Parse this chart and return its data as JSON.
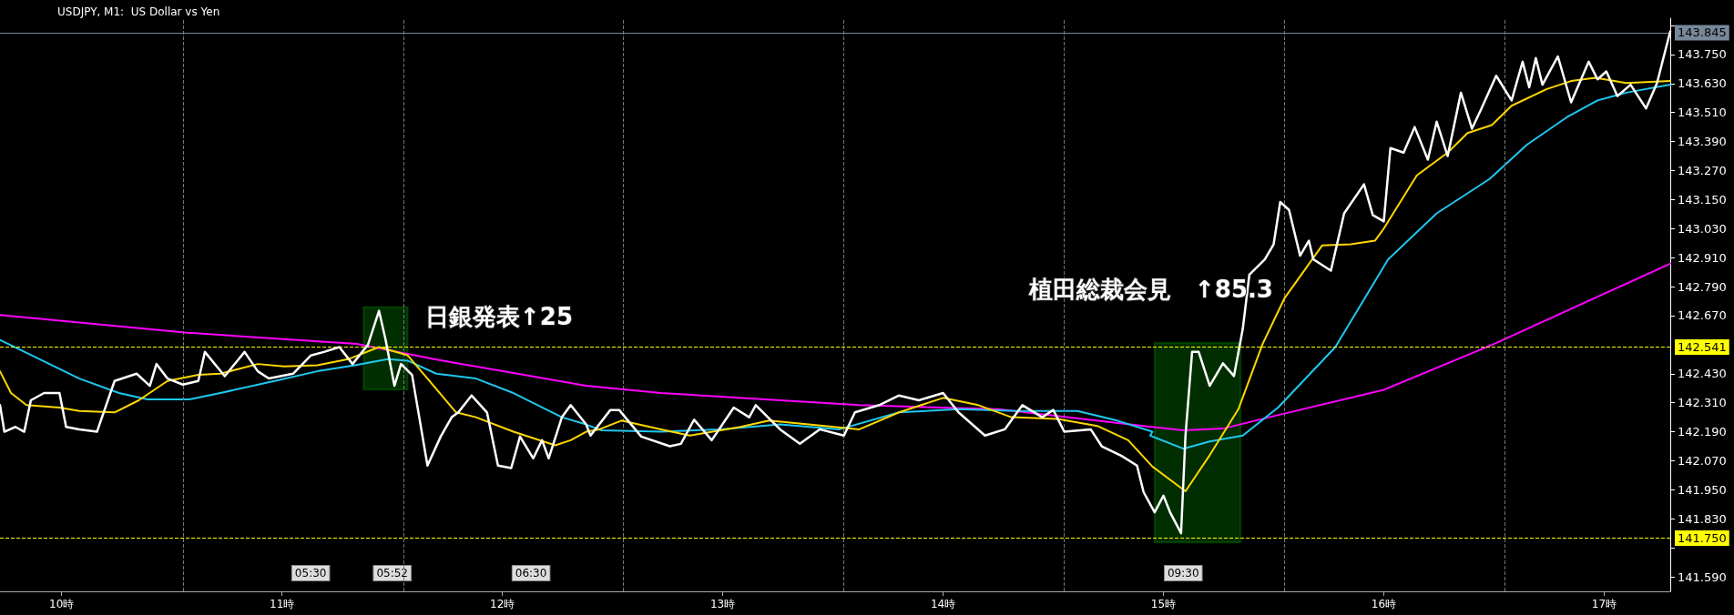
{
  "chart_data": {
    "type": "line",
    "title": "USDJPY, M1:  US Dollar vs Yen",
    "grid": "x",
    "marker": "none",
    "line_style": "solid",
    "xlim": [
      9.72,
      17.3
    ],
    "xticks": [
      {
        "value": 10,
        "label": "10時"
      },
      {
        "value": 10.55,
        "label": null
      },
      {
        "value": 11,
        "label": "11時"
      },
      {
        "value": 11.55,
        "label": null
      },
      {
        "value": 12,
        "label": "12時"
      },
      {
        "value": 12.55,
        "label": null
      },
      {
        "value": 13,
        "label": "13時"
      },
      {
        "value": 13.55,
        "label": null
      },
      {
        "value": 14,
        "label": "14時"
      },
      {
        "value": 14.55,
        "label": null
      },
      {
        "value": 15,
        "label": "15時"
      },
      {
        "value": 15.55,
        "label": null
      },
      {
        "value": 16,
        "label": "16時"
      },
      {
        "value": 16.55,
        "label": null
      },
      {
        "value": 17,
        "label": "17時"
      }
    ],
    "ylim": [
      141.53,
      143.9
    ],
    "yticks": [
      {
        "value": 141.59,
        "label": "141.590"
      },
      {
        "value": 141.71,
        "label": null
      },
      {
        "value": 141.83,
        "label": "141.830"
      },
      {
        "value": 141.95,
        "label": "141.950"
      },
      {
        "value": 142.07,
        "label": "142.070"
      },
      {
        "value": 142.19,
        "label": "142.190"
      },
      {
        "value": 142.31,
        "label": "142.310"
      },
      {
        "value": 142.43,
        "label": "142.430"
      },
      {
        "value": 142.67,
        "label": "142.670"
      },
      {
        "value": 142.79,
        "label": "142.790"
      },
      {
        "value": 142.91,
        "label": "142.910"
      },
      {
        "value": 143.03,
        "label": "143.030"
      },
      {
        "value": 143.15,
        "label": "143.150"
      },
      {
        "value": 143.27,
        "label": "143.270"
      },
      {
        "value": 143.39,
        "label": "143.390"
      },
      {
        "value": 143.51,
        "label": "143.510"
      },
      {
        "value": 143.63,
        "label": "143.630"
      },
      {
        "value": 143.75,
        "label": "143.750"
      },
      {
        "value": 143.87,
        "label": null
      }
    ],
    "series": [
      {
        "color": "#ff00ff",
        "x": [
          9.72,
          10.56,
          11.34,
          11.69,
          12.38,
          12.72,
          13.62,
          14.25,
          14.91,
          15.09,
          15.27,
          15.48,
          16.0,
          16.5,
          17.3
        ],
        "values": [
          142.673,
          142.6,
          142.553,
          142.49,
          142.38,
          142.35,
          142.3,
          142.283,
          142.214,
          142.196,
          142.203,
          142.25,
          142.363,
          142.553,
          142.885
        ]
      },
      {
        "color": "#1ec8f0",
        "x": [
          9.72,
          9.9,
          10.08,
          10.26,
          10.39,
          10.58,
          10.72,
          10.98,
          11.16,
          11.33,
          11.48,
          11.57,
          11.7,
          11.88,
          12.05,
          12.27,
          12.38,
          12.45,
          12.72,
          12.99,
          13.26,
          13.53,
          13.8,
          14.07,
          14.34,
          14.61,
          14.79,
          14.95,
          14.94,
          15.09,
          15.21,
          15.36,
          15.52,
          15.78,
          16.02,
          16.24,
          16.48,
          16.65,
          16.83,
          16.97,
          17.1,
          17.3
        ],
        "values": [
          142.57,
          142.49,
          142.41,
          142.35,
          142.324,
          142.324,
          142.35,
          142.403,
          142.44,
          142.465,
          142.49,
          142.484,
          142.43,
          142.41,
          142.35,
          142.25,
          142.22,
          142.196,
          142.19,
          142.2,
          142.22,
          142.2,
          142.27,
          142.283,
          142.276,
          142.276,
          142.236,
          142.19,
          142.174,
          142.12,
          142.15,
          142.174,
          142.29,
          142.54,
          142.903,
          143.093,
          143.235,
          143.377,
          143.49,
          143.56,
          143.592,
          143.625
        ]
      },
      {
        "color": "#ffd700",
        "x": [
          9.72,
          9.77,
          9.84,
          9.99,
          10.08,
          10.24,
          10.35,
          10.48,
          10.62,
          10.72,
          10.89,
          11.01,
          11.16,
          11.3,
          11.44,
          11.57,
          11.66,
          11.79,
          11.88,
          12.05,
          12.24,
          12.31,
          12.38,
          12.44,
          12.54,
          12.72,
          12.85,
          13.08,
          13.21,
          13.39,
          13.62,
          13.8,
          14.0,
          14.16,
          14.31,
          14.52,
          14.7,
          14.84,
          14.95,
          15.1,
          15.21,
          15.34,
          15.45,
          15.55,
          15.72,
          15.85,
          15.96,
          16.0,
          16.15,
          16.29,
          16.38,
          16.49,
          16.58,
          16.74,
          16.85,
          16.96,
          17.1,
          17.3
        ],
        "values": [
          142.44,
          142.35,
          142.3,
          142.29,
          142.276,
          142.27,
          142.32,
          142.4,
          142.425,
          142.43,
          142.47,
          142.46,
          142.465,
          142.49,
          142.54,
          142.506,
          142.41,
          142.27,
          142.25,
          142.19,
          142.134,
          142.155,
          142.19,
          142.2,
          142.236,
          142.2,
          142.174,
          142.21,
          142.236,
          142.22,
          142.2,
          142.27,
          142.33,
          142.3,
          142.25,
          142.243,
          142.214,
          142.155,
          142.046,
          141.944,
          142.093,
          142.283,
          142.553,
          142.743,
          142.96,
          142.965,
          142.98,
          143.03,
          143.25,
          143.344,
          143.425,
          143.458,
          143.538,
          143.607,
          143.64,
          143.654,
          143.632,
          143.64
        ]
      },
      {
        "color": "#ffffff",
        "x": [
          9.72,
          9.74,
          9.79,
          9.83,
          9.86,
          9.92,
          9.99,
          10.02,
          10.08,
          10.16,
          10.24,
          10.34,
          10.4,
          10.43,
          10.48,
          10.55,
          10.62,
          10.65,
          10.74,
          10.83,
          10.89,
          10.94,
          11.05,
          11.13,
          11.19,
          11.26,
          11.32,
          11.39,
          11.44,
          11.47,
          11.51,
          11.54,
          11.59,
          11.66,
          11.72,
          11.77,
          11.8,
          11.86,
          11.93,
          11.98,
          12.04,
          12.08,
          12.14,
          12.18,
          12.21,
          12.27,
          12.31,
          12.38,
          12.4,
          12.49,
          12.53,
          12.63,
          12.76,
          12.81,
          12.87,
          12.95,
          13.05,
          13.12,
          13.15,
          13.26,
          13.35,
          13.44,
          13.55,
          13.6,
          13.71,
          13.8,
          13.89,
          14.0,
          14.07,
          14.19,
          14.28,
          14.36,
          14.45,
          14.5,
          14.55,
          14.67,
          14.72,
          14.81,
          14.88,
          14.91,
          14.96,
          15.0,
          15.03,
          15.08,
          15.1,
          15.13,
          15.16,
          15.21,
          15.27,
          15.32,
          15.36,
          15.39,
          15.46,
          15.5,
          15.53,
          15.57,
          15.62,
          15.66,
          15.68,
          15.76,
          15.82,
          15.91,
          15.95,
          16.0,
          16.03,
          16.09,
          16.14,
          16.2,
          16.24,
          16.29,
          16.35,
          16.4,
          16.44,
          16.51,
          16.58,
          16.63,
          16.66,
          16.69,
          16.72,
          16.79,
          16.85,
          16.93,
          16.97,
          17.01,
          17.06,
          17.12,
          17.19,
          17.24,
          17.28,
          17.3
        ],
        "values": [
          142.3,
          142.19,
          142.21,
          142.19,
          142.32,
          142.35,
          142.35,
          142.21,
          142.2,
          142.19,
          142.4,
          142.43,
          142.38,
          142.47,
          142.41,
          142.385,
          142.4,
          142.52,
          142.42,
          142.52,
          142.44,
          142.41,
          142.43,
          142.505,
          142.52,
          142.54,
          142.47,
          142.55,
          142.69,
          142.57,
          142.38,
          142.47,
          142.425,
          142.05,
          142.17,
          142.25,
          142.27,
          142.34,
          142.27,
          142.05,
          142.04,
          142.17,
          142.08,
          142.155,
          142.08,
          142.25,
          142.3,
          142.22,
          142.174,
          142.28,
          142.28,
          142.17,
          142.13,
          142.14,
          142.24,
          142.155,
          142.29,
          142.25,
          142.3,
          142.2,
          142.14,
          142.2,
          142.174,
          142.27,
          142.3,
          142.34,
          142.32,
          142.35,
          142.27,
          142.174,
          142.2,
          142.3,
          142.25,
          142.28,
          142.19,
          142.2,
          142.13,
          142.09,
          142.05,
          141.94,
          141.857,
          141.926,
          141.857,
          141.77,
          142.174,
          142.52,
          142.52,
          142.38,
          142.473,
          142.42,
          142.615,
          142.84,
          142.903,
          142.965,
          143.14,
          143.107,
          142.918,
          142.98,
          142.903,
          142.856,
          143.093,
          143.213,
          143.086,
          143.06,
          143.363,
          143.344,
          143.45,
          143.315,
          143.472,
          143.33,
          143.592,
          143.443,
          143.52,
          143.662,
          143.56,
          143.72,
          143.614,
          143.735,
          143.625,
          143.742,
          143.552,
          143.72,
          143.647,
          143.68,
          143.578,
          143.625,
          143.527,
          143.632,
          143.775,
          143.845
        ]
      }
    ],
    "ref_lines": [
      {
        "axis": "y",
        "value": 142.541,
        "label": "142.541",
        "color": "#ffff00",
        "line_style": "dashed"
      },
      {
        "axis": "y",
        "value": 141.75,
        "label": "141.750",
        "color": "#ffff00",
        "line_style": "dashed"
      },
      {
        "axis": "y",
        "value": 143.845,
        "label": "143.845",
        "color": "#778899",
        "line_style": "solid"
      }
    ],
    "bands": [
      {
        "axis": "x",
        "from": 11.37,
        "to": 11.57,
        "color": "#00ff00"
      },
      {
        "axis": "x",
        "from": 14.96,
        "to": 15.35,
        "color": "#00ff00"
      }
    ],
    "annotations": [
      "日銀発表↑25",
      "植田総裁会見　↑85.3",
      {
        "text": "05:30",
        "x": 11.13
      },
      {
        "text": "05:52",
        "x": 11.5
      },
      {
        "text": "06:30",
        "x": 12.13
      },
      {
        "text": "09:30",
        "x": 15.09
      }
    ]
  }
}
